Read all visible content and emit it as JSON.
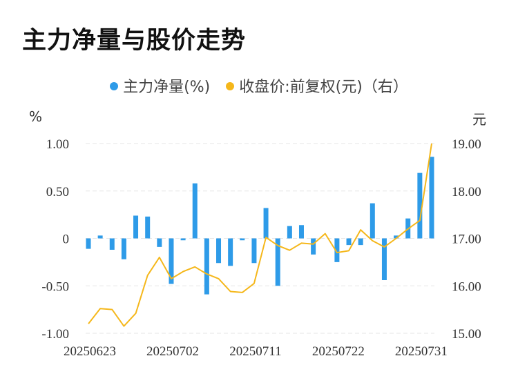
{
  "title": "主力净量与股价走势",
  "legend": {
    "net": "主力净量(%)",
    "price": "收盘价:前复权(元)（右）"
  },
  "colors": {
    "net": "#2e9be8",
    "price": "#f5b71a",
    "grid": "#e6e6e6"
  },
  "chart_data": {
    "type": "bar+line",
    "title": "主力净量与股价走势",
    "y_left_unit": "%",
    "y_right_unit": "元",
    "y_left_ticks": [
      "1.00",
      "0.50",
      "0",
      "-0.50",
      "-1.00"
    ],
    "y_right_ticks": [
      "19.00",
      "18.00",
      "17.00",
      "16.00",
      "15.00"
    ],
    "ylim_left": [
      -1.0,
      1.0
    ],
    "ylim_right": [
      15.0,
      19.0
    ],
    "x_tick_labels": [
      "20250623",
      "20250702",
      "20250711",
      "20250722",
      "20250731"
    ],
    "x_tick_indices": [
      0,
      7,
      14,
      21,
      28
    ],
    "grid": true,
    "legend_position": "top",
    "series": [
      {
        "name": "主力净量(%)",
        "type": "bar",
        "axis": "left",
        "values": [
          -0.11,
          0.03,
          -0.12,
          -0.22,
          0.24,
          0.23,
          -0.09,
          -0.48,
          -0.02,
          0.58,
          -0.59,
          -0.26,
          -0.29,
          -0.02,
          -0.26,
          0.32,
          -0.5,
          0.13,
          0.14,
          -0.17,
          0.0,
          -0.25,
          -0.07,
          -0.07,
          0.37,
          -0.44,
          0.03,
          0.21,
          0.69,
          0.86
        ]
      },
      {
        "name": "收盘价:前复权(元)（右）",
        "type": "line",
        "axis": "right",
        "values": [
          15.2,
          15.52,
          15.5,
          15.15,
          15.42,
          16.22,
          16.6,
          16.15,
          16.3,
          16.4,
          16.25,
          16.15,
          15.88,
          15.86,
          16.05,
          17.02,
          16.85,
          16.75,
          16.9,
          16.88,
          17.1,
          16.7,
          16.74,
          17.18,
          16.95,
          16.82,
          17.0,
          17.2,
          17.38,
          19.0
        ]
      }
    ]
  }
}
